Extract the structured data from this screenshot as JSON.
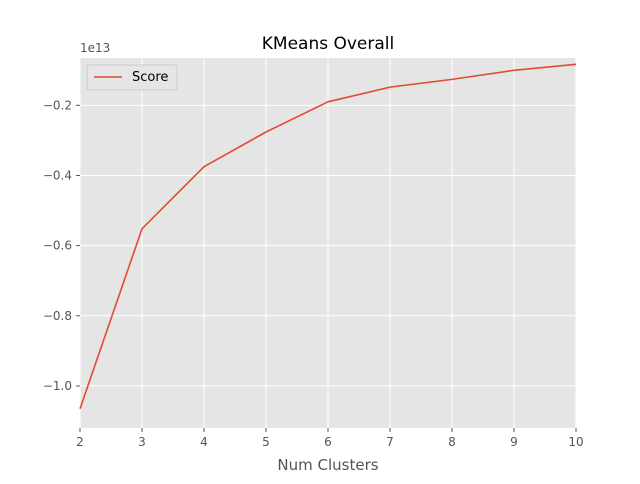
{
  "chart_data": {
    "type": "line",
    "title": "KMeans Overall",
    "xlabel": "Num Clusters",
    "ylabel": "",
    "y_offset_label": "1e13",
    "x": [
      2,
      3,
      4,
      5,
      6,
      7,
      8,
      9,
      10
    ],
    "series": [
      {
        "name": "Score",
        "color": "#E24A33",
        "values": [
          -1.065,
          -0.552,
          -0.375,
          -0.276,
          -0.19,
          -0.148,
          -0.126,
          -0.1,
          -0.083
        ]
      }
    ],
    "xlim": [
      2,
      10
    ],
    "ylim": [
      -1.12,
      -0.065
    ],
    "xticks": [
      2,
      3,
      4,
      5,
      6,
      7,
      8,
      9,
      10
    ],
    "yticks": [
      -1.0,
      -0.8,
      -0.6,
      -0.4,
      -0.2
    ],
    "ytick_labels": [
      "−1.0",
      "−0.8",
      "−0.6",
      "−0.4",
      "−0.2"
    ],
    "grid": true,
    "legend_position": "upper-left",
    "colors": {
      "plot_background": "#E5E5E5",
      "grid": "#FFFFFF",
      "text": "#555555",
      "title": "#000000"
    }
  }
}
